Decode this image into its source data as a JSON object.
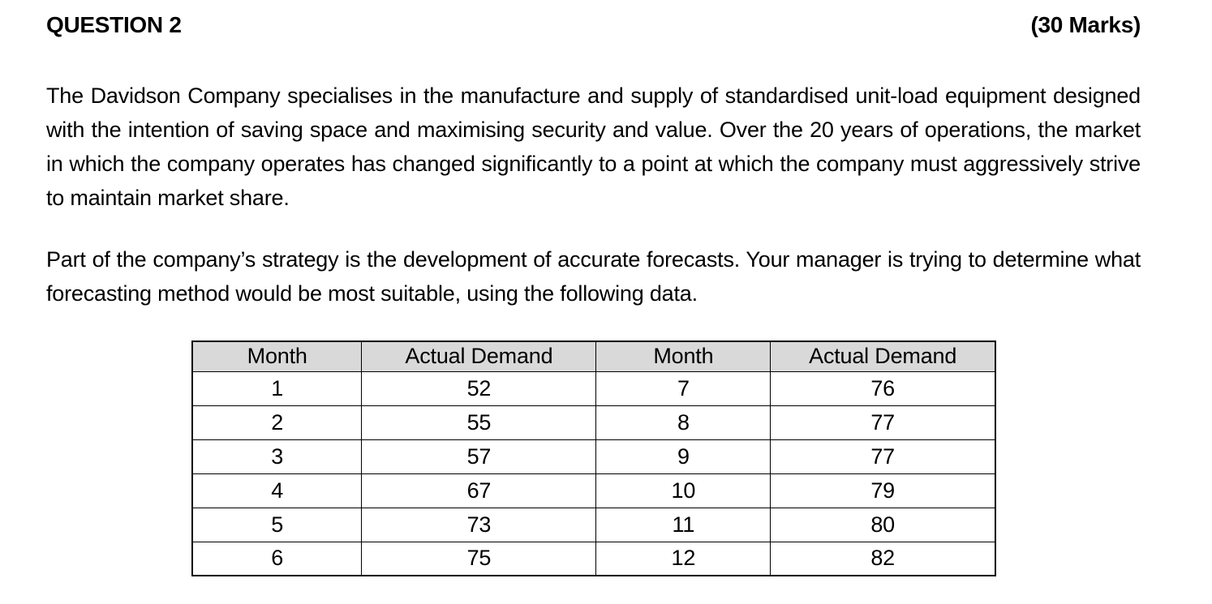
{
  "header": {
    "title": "QUESTION 2",
    "marks": "(30 Marks)"
  },
  "paragraphs": [
    "The Davidson Company specialises in the manufacture and supply of standardised unit-load equipment designed with the intention of saving space and maximising security and value. Over the 20 years of operations, the market in which the company operates has changed significantly to a point at which the company must aggressively strive to maintain market share.",
    "Part of the company’s strategy is the development of accurate forecasts. Your manager is trying to determine what forecasting method would be most suitable, using the following data."
  ],
  "table": {
    "header_bg": "#d9d9d9",
    "border_color": "#000000",
    "headers": [
      "Month",
      "Actual Demand",
      "Month",
      "Actual Demand"
    ],
    "rows": [
      [
        "1",
        "52",
        "7",
        "76"
      ],
      [
        "2",
        "55",
        "8",
        "77"
      ],
      [
        "3",
        "57",
        "9",
        "77"
      ],
      [
        "4",
        "67",
        "10",
        "79"
      ],
      [
        "5",
        "73",
        "11",
        "80"
      ],
      [
        "6",
        "75",
        "12",
        "82"
      ]
    ]
  }
}
